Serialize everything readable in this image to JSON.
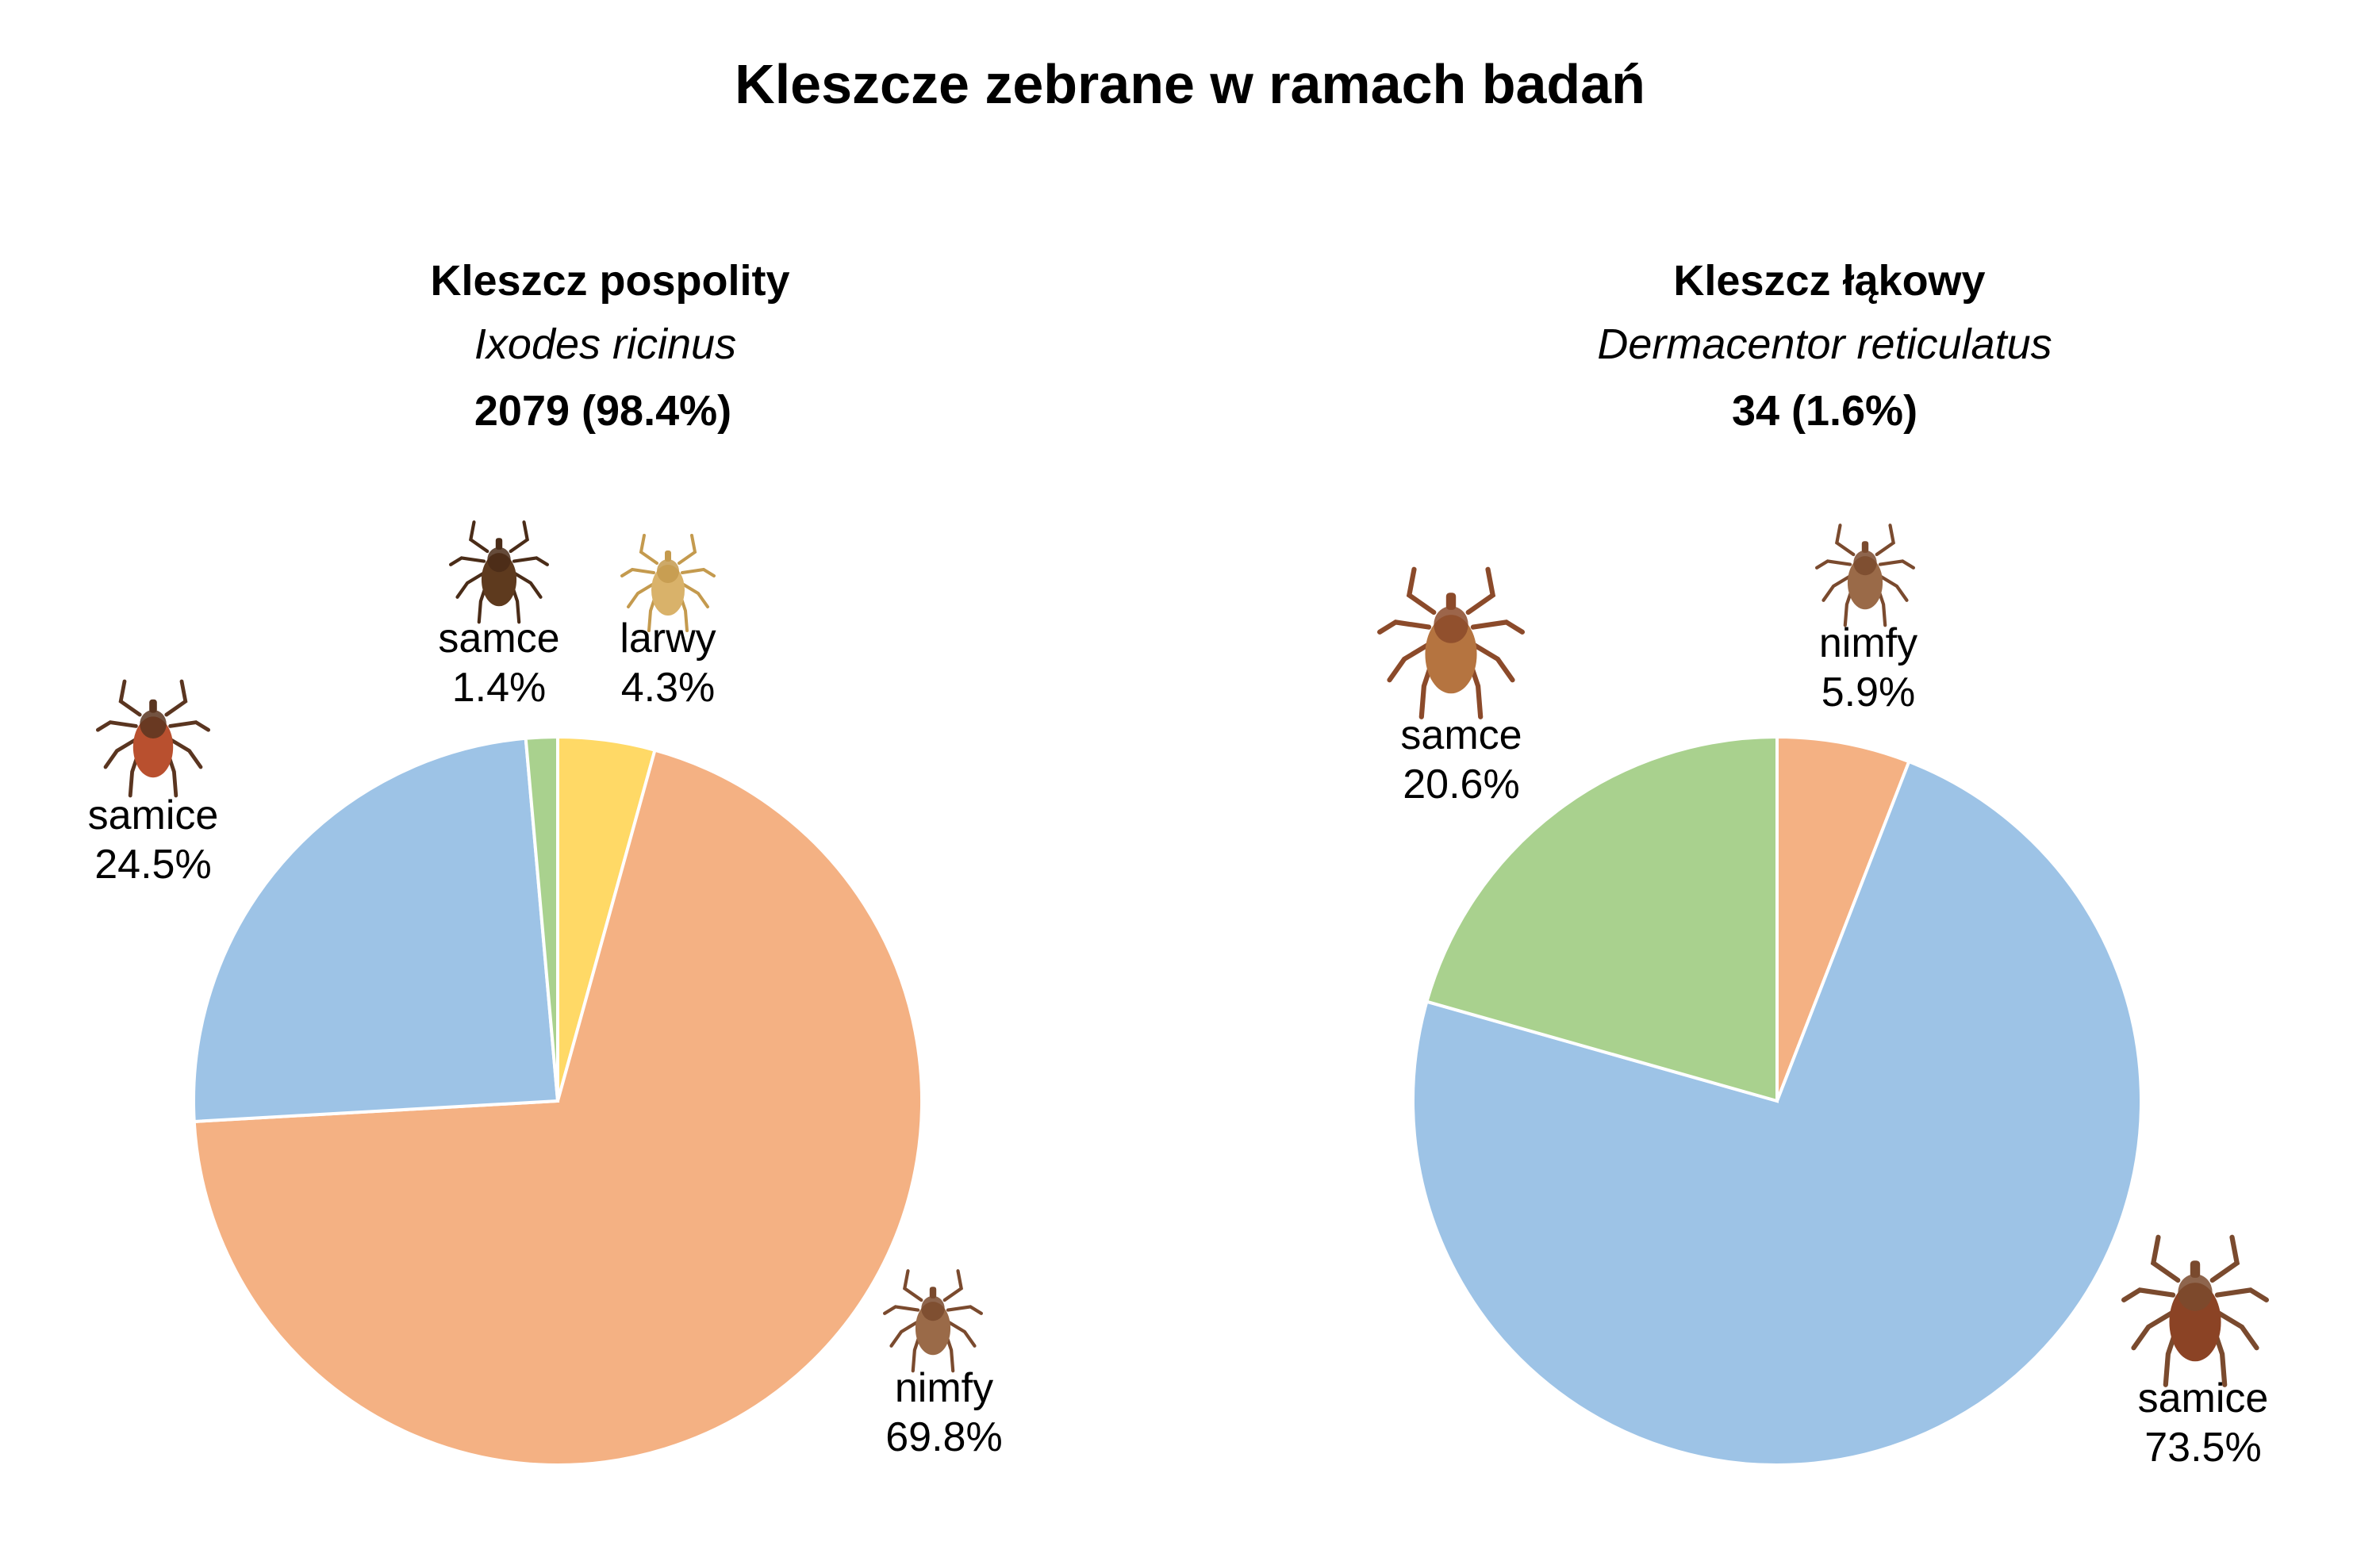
{
  "chart_data": {
    "title": "Kleszcze zebrane w ramach badań",
    "charts": [
      {
        "type": "pie",
        "name": "Kleszcz pospolity",
        "latin": "Ixodes ricinus",
        "total": "2079 (98.4%)",
        "start_angle": "top",
        "direction": "clockwise",
        "slices": [
          {
            "label": "larwy",
            "value": 4.3,
            "pct": "4.3%",
            "color": "#FFD966",
            "icon": "tick-larva-icon"
          },
          {
            "label": "nimfy",
            "value": 69.8,
            "pct": "69.8%",
            "color": "#F4B183",
            "icon": "tick-nymph-icon"
          },
          {
            "label": "samice",
            "value": 24.5,
            "pct": "24.5%",
            "color": "#9DC3E6",
            "icon": "tick-female-icon"
          },
          {
            "label": "samce",
            "value": 1.4,
            "pct": "1.4%",
            "color": "#A9D18E",
            "icon": "tick-male-icon"
          }
        ]
      },
      {
        "type": "pie",
        "name": "Kleszcz łąkowy",
        "latin": "Dermacentor reticulatus",
        "total": "34 (1.6%)",
        "start_angle": "top",
        "direction": "clockwise",
        "slices": [
          {
            "label": "nimfy",
            "value": 5.9,
            "pct": "5.9%",
            "color": "#F4B183",
            "icon": "tick-nymph-icon"
          },
          {
            "label": "samice",
            "value": 73.5,
            "pct": "73.5%",
            "color": "#9DC3E6",
            "icon": "tick-female-icon"
          },
          {
            "label": "samce",
            "value": 20.6,
            "pct": "20.6%",
            "color": "#A9D18E",
            "icon": "tick-male-icon"
          }
        ]
      }
    ]
  }
}
